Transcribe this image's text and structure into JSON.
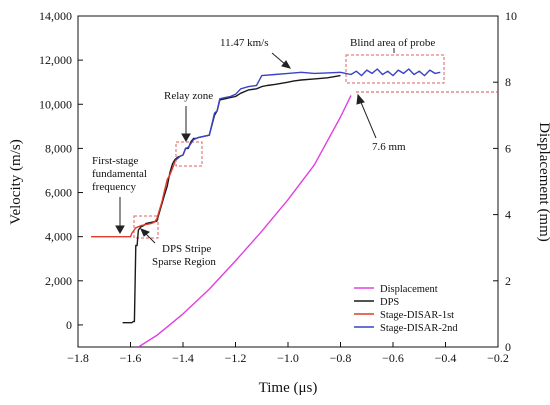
{
  "chart_data": {
    "type": "line",
    "xlabel": "Time (μs)",
    "ylabel": "Velocity (m/s)",
    "y2label": "Displacement (mm)",
    "xlim": [
      -1.8,
      -0.2
    ],
    "ylim": [
      -1000,
      14000
    ],
    "y2lim": [
      0,
      10
    ],
    "xticks": [
      -1.8,
      -1.6,
      -1.4,
      -1.2,
      -1.0,
      -0.8,
      -0.6,
      -0.4,
      -0.2
    ],
    "xtick_labels": [
      "−1.8",
      "−1.6",
      "−1.4",
      "−1.2",
      "−1.0",
      "−0.8",
      "−0.6",
      "−0.4",
      "−0.2"
    ],
    "yticks": [
      0,
      2000,
      4000,
      6000,
      8000,
      10000,
      12000,
      14000
    ],
    "ytick_labels": [
      "0",
      "2,000",
      "4,000",
      "6,000",
      "8,000",
      "10,000",
      "12,000",
      "14,000"
    ],
    "y2ticks": [
      0,
      2,
      4,
      6,
      8,
      10
    ],
    "y2tick_labels": [
      "0",
      "2",
      "4",
      "6",
      "8",
      "10"
    ],
    "grid": false,
    "legend_position": "bottom-right",
    "series": [
      {
        "name": "Displacement",
        "color": "#e040e0",
        "axis": "right",
        "x": [
          -1.57,
          -1.5,
          -1.4,
          -1.3,
          -1.2,
          -1.1,
          -1.0,
          -0.9,
          -0.8,
          -0.76
        ],
        "y": [
          0,
          0.35,
          1.0,
          1.75,
          2.6,
          3.5,
          4.45,
          5.5,
          6.95,
          7.6
        ]
      },
      {
        "name": "DPS",
        "color": "#1a1a1a",
        "axis": "left",
        "x": [
          -1.63,
          -1.6,
          -1.595,
          -1.59,
          -1.585,
          -1.58,
          -1.575,
          -1.57,
          -1.56,
          -1.55,
          -1.54,
          -1.52,
          -1.5,
          -1.49,
          -1.48,
          -1.47,
          -1.46,
          -1.45,
          -1.44,
          -1.43,
          -1.42,
          -1.41,
          -1.4,
          -1.39,
          -1.38,
          -1.37,
          -1.36,
          -1.35,
          -1.34,
          -1.32,
          -1.3,
          -1.28,
          -1.27,
          -1.26,
          -1.24,
          -1.22,
          -1.2,
          -1.18,
          -1.15,
          -1.12,
          -1.1,
          -1.08,
          -1.05,
          -1.0,
          -0.98,
          -0.95,
          -0.9,
          -0.85,
          -0.8
        ],
        "y": [
          100,
          100,
          100,
          150,
          150,
          3600,
          3600,
          4300,
          4450,
          4500,
          4600,
          4650,
          4700,
          5100,
          5500,
          5900,
          6300,
          6900,
          7300,
          7500,
          7600,
          7650,
          7700,
          8000,
          8000,
          8300,
          8450,
          8450,
          8500,
          8550,
          8600,
          9500,
          9700,
          10200,
          10250,
          10300,
          10350,
          10500,
          10650,
          10700,
          10800,
          10850,
          10900,
          11000,
          11050,
          11100,
          11150,
          11200,
          11300
        ]
      },
      {
        "name": "Stage-DISAR-1st",
        "color": "#e03a2a",
        "axis": "left",
        "x": [
          -1.75,
          -1.6,
          -1.595,
          -1.58,
          -1.56,
          -1.54,
          -1.52,
          -1.51,
          -1.5,
          -1.49,
          -1.48,
          -1.47,
          -1.46,
          -1.45,
          -1.44,
          -1.43
        ],
        "y": [
          4000,
          4000,
          4150,
          4400,
          4500,
          4550,
          4600,
          4650,
          4800,
          5200,
          5600,
          6100,
          6600,
          6800,
          7100,
          7400
        ]
      },
      {
        "name": "Stage-DISAR-2nd",
        "color": "#3a43c8",
        "axis": "left",
        "x": [
          -1.43,
          -1.42,
          -1.41,
          -1.4,
          -1.39,
          -1.38,
          -1.36,
          -1.35,
          -1.34,
          -1.32,
          -1.3,
          -1.28,
          -1.27,
          -1.26,
          -1.24,
          -1.22,
          -1.2,
          -1.18,
          -1.15,
          -1.12,
          -1.1,
          -1.05,
          -1.0,
          -0.95,
          -0.9,
          -0.85,
          -0.8,
          -0.78,
          -0.76,
          -0.74,
          -0.72,
          -0.7,
          -0.68,
          -0.66,
          -0.64,
          -0.62,
          -0.6,
          -0.58,
          -0.56,
          -0.54,
          -0.52,
          -0.5,
          -0.48,
          -0.46,
          -0.44,
          -0.42
        ],
        "y": [
          7450,
          7550,
          7650,
          7700,
          8000,
          8050,
          8400,
          8450,
          8500,
          8550,
          8600,
          9600,
          9700,
          10250,
          10300,
          10350,
          10450,
          10700,
          10800,
          10850,
          11300,
          11350,
          11400,
          11450,
          11400,
          11420,
          11450,
          11400,
          11350,
          11500,
          11300,
          11550,
          11400,
          11600,
          11350,
          11500,
          11300,
          11550,
          11400,
          11600,
          11350,
          11500,
          11300,
          11550,
          11400,
          11450
        ]
      }
    ],
    "annotations": {
      "first_stage": [
        "First-stage",
        "fundamental",
        "frequency"
      ],
      "dps_stripe": [
        "DPS Stripe",
        "Sparse Region"
      ],
      "relay_zone": "Relay zone",
      "peak_velocity": "11.47 km/s",
      "blind_area": "Blind area of probe",
      "final_displacement": "7.6 mm"
    }
  }
}
